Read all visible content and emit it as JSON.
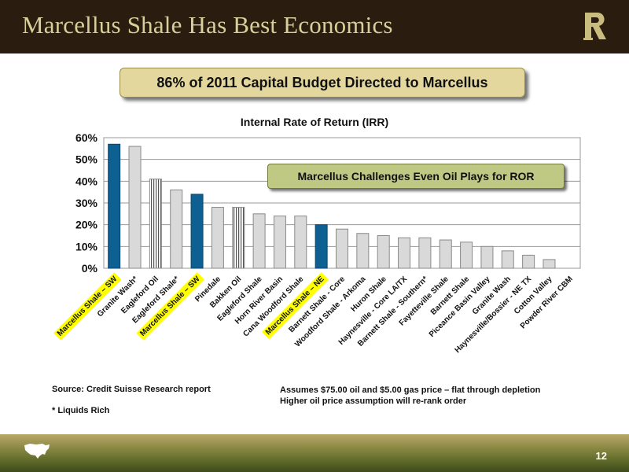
{
  "slide": {
    "title": "Marcellus Shale Has Best Economics",
    "banner": "86% of 2011 Capital Budget Directed to Marcellus",
    "callout": "Marcellus Challenges Even Oil Plays for ROR",
    "source": "Source: Credit Suisse Research report",
    "footnote": "* Liquids Rich",
    "assumption_1": "Assumes $75.00 oil and $5.00 gas price – flat through depletion",
    "assumption_2": "Higher oil price assumption will re-rank order",
    "page_number": "12"
  },
  "colors": {
    "marcellus": "#0e5f92",
    "other": "#d9d9d9",
    "highlight": "#ffff00",
    "title_bar": "#2b1c10"
  },
  "chart_data": {
    "type": "bar",
    "title": "Internal Rate of Return (IRR)",
    "ylim": [
      0,
      60
    ],
    "yticks": [
      0,
      10,
      20,
      30,
      40,
      50,
      60
    ],
    "ytick_labels": [
      "0%",
      "10%",
      "20%",
      "30%",
      "40%",
      "50%",
      "60%"
    ],
    "grid": true,
    "categories": [
      "Marcellus Shale – SW",
      "Granite Wash*",
      "Eagleford Oil",
      "Eagleford Shale*",
      "Marcellus Shale – SW",
      "Pinedale",
      "Bakken Oil",
      "Eagleford Shale",
      "Horn River Basin",
      "Cana Woodford Shale",
      "Marcellus Shale – NE",
      "Barnett Shale - Core",
      "Woodford Shale - Arkoma",
      "Huron Shale",
      "Haynesville - Core LA/TX",
      "Barnett Shale - Southern*",
      "Fayetteville Shale",
      "Barnett Shale",
      "Piceance Basin Valley",
      "Granite Wash",
      "Haynesville/Bossier - NE TX",
      "Cotton Valley",
      "Powder River CBM"
    ],
    "values": [
      57,
      56,
      41,
      36,
      34,
      28,
      28,
      25,
      24,
      24,
      20,
      18,
      16,
      15,
      14,
      14,
      13,
      12,
      10,
      8,
      6,
      4,
      0
    ],
    "styles": [
      "marcellus",
      "other",
      "hatched",
      "other",
      "marcellus",
      "other",
      "hatched",
      "other",
      "other",
      "other",
      "marcellus",
      "other",
      "other",
      "other",
      "other",
      "other",
      "other",
      "other",
      "other",
      "other",
      "other",
      "other",
      "other"
    ],
    "highlighted": [
      true,
      false,
      false,
      false,
      true,
      false,
      false,
      false,
      false,
      false,
      true,
      false,
      false,
      false,
      false,
      false,
      false,
      false,
      false,
      false,
      false,
      false,
      false
    ]
  }
}
